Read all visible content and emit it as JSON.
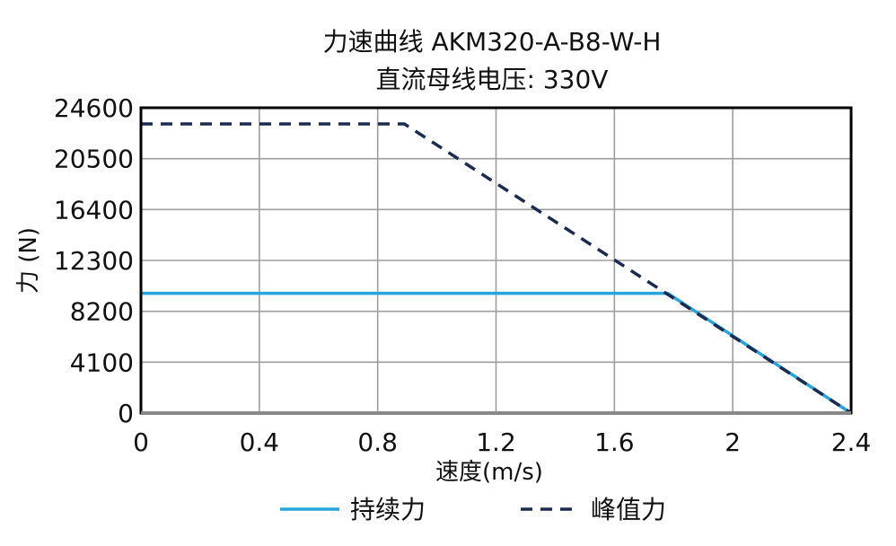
{
  "chart_data": {
    "type": "line",
    "title": "力速曲线 AKM320-A-B8-W-H",
    "subtitle": "直流母线电压: 330V",
    "xlabel": "速度(m/s)",
    "ylabel": "力 (N)",
    "xlim": [
      0,
      2.4
    ],
    "ylim": [
      0,
      24600
    ],
    "xticks": [
      0,
      0.4,
      0.8,
      1.2,
      1.6,
      2,
      2.4
    ],
    "xtick_labels": [
      "0",
      "0.4",
      "0.8",
      "1.2",
      "1.6",
      "2",
      "2.4"
    ],
    "yticks": [
      0,
      4100,
      8200,
      12300,
      16400,
      20500,
      24600
    ],
    "ytick_labels": [
      "0",
      "4100",
      "8200",
      "12300",
      "16400",
      "20500",
      "24600"
    ],
    "grid": true,
    "legend_position": "bottom",
    "series": [
      {
        "name": "持续力",
        "color": "#29a3dc",
        "style": "solid",
        "points": [
          [
            0,
            9650
          ],
          [
            1.78,
            9650
          ],
          [
            2.4,
            0
          ]
        ]
      },
      {
        "name": "峰值力",
        "color": "#1b2a50",
        "style": "dashed",
        "points": [
          [
            0,
            23300
          ],
          [
            0.89,
            23300
          ],
          [
            2.4,
            0
          ]
        ]
      }
    ]
  }
}
